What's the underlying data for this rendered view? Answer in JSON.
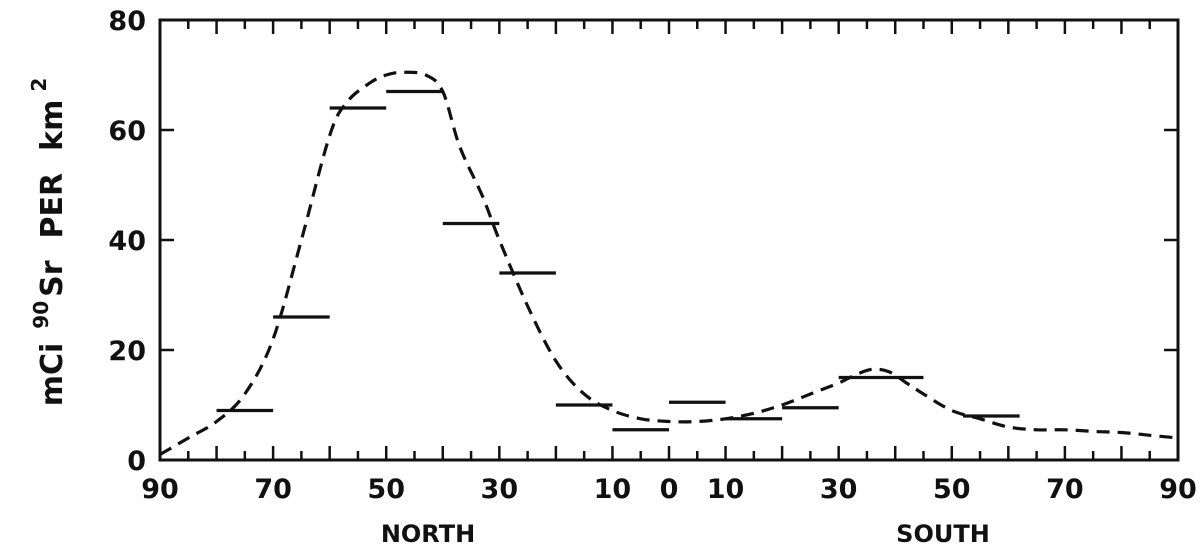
{
  "chart_data": {
    "type": "line",
    "title": "",
    "ylabel": {
      "prefix": "mCi",
      "isotope_mass": "90",
      "isotope": "Sr",
      "middle": "PER",
      "unit": "km",
      "unit_power": "2"
    },
    "xlabel_regions": [
      "NORTH",
      "SOUTH"
    ],
    "ylim": [
      0,
      80
    ],
    "xlim": [
      -90,
      90
    ],
    "y_ticks": [
      0,
      20,
      40,
      60,
      80
    ],
    "x_tick_labels": [
      {
        "value": -90,
        "label": "90"
      },
      {
        "value": -70,
        "label": "70"
      },
      {
        "value": -50,
        "label": "50"
      },
      {
        "value": -30,
        "label": "30"
      },
      {
        "value": -10,
        "label": "10"
      },
      {
        "value": 0,
        "label": "0"
      },
      {
        "value": 10,
        "label": "10"
      },
      {
        "value": 30,
        "label": "30"
      },
      {
        "value": 50,
        "label": "50"
      },
      {
        "value": 70,
        "label": "70"
      },
      {
        "value": 90,
        "label": "90"
      }
    ],
    "x_minor_tick_step": 5,
    "x_major_tick_step": 10,
    "grid": false,
    "series": [
      {
        "style": "dashed-curve",
        "x": [
          -90,
          -85,
          -80,
          -75,
          -70,
          -65,
          -60,
          -57,
          -53,
          -50,
          -47,
          -43,
          -40,
          -37,
          -33,
          -30,
          -25,
          -20,
          -15,
          -10,
          -5,
          0,
          5,
          10,
          15,
          20,
          25,
          30,
          33,
          36,
          39,
          42,
          45,
          50,
          55,
          60,
          65,
          70,
          75,
          80,
          85,
          90
        ],
        "y": [
          1,
          4,
          7,
          12,
          22,
          40,
          59,
          65,
          68.5,
          70,
          70.5,
          70,
          67,
          57,
          48,
          40,
          28,
          18,
          12,
          9,
          7.5,
          7,
          7,
          7.5,
          8.5,
          10,
          12,
          14,
          15.5,
          16.5,
          16,
          14,
          12,
          9,
          7.5,
          6,
          5.5,
          5.5,
          5.2,
          5,
          4.5,
          4
        ]
      },
      {
        "style": "band-segments",
        "bands": [
          {
            "x_from": -80,
            "x_to": -70,
            "y": 9
          },
          {
            "x_from": -70,
            "x_to": -60,
            "y": 26
          },
          {
            "x_from": -60,
            "x_to": -50,
            "y": 64
          },
          {
            "x_from": -50,
            "x_to": -40,
            "y": 67
          },
          {
            "x_from": -40,
            "x_to": -30,
            "y": 43
          },
          {
            "x_from": -30,
            "x_to": -20,
            "y": 34
          },
          {
            "x_from": -20,
            "x_to": -10,
            "y": 10
          },
          {
            "x_from": -10,
            "x_to": 0,
            "y": 5.5
          },
          {
            "x_from": 0,
            "x_to": 10,
            "y": 10.5
          },
          {
            "x_from": 10,
            "x_to": 20,
            "y": 7.5
          },
          {
            "x_from": 20,
            "x_to": 30,
            "y": 9.5
          },
          {
            "x_from": 30,
            "x_to": 45,
            "y": 15
          },
          {
            "x_from": 52,
            "x_to": 62,
            "y": 8
          }
        ]
      }
    ]
  }
}
